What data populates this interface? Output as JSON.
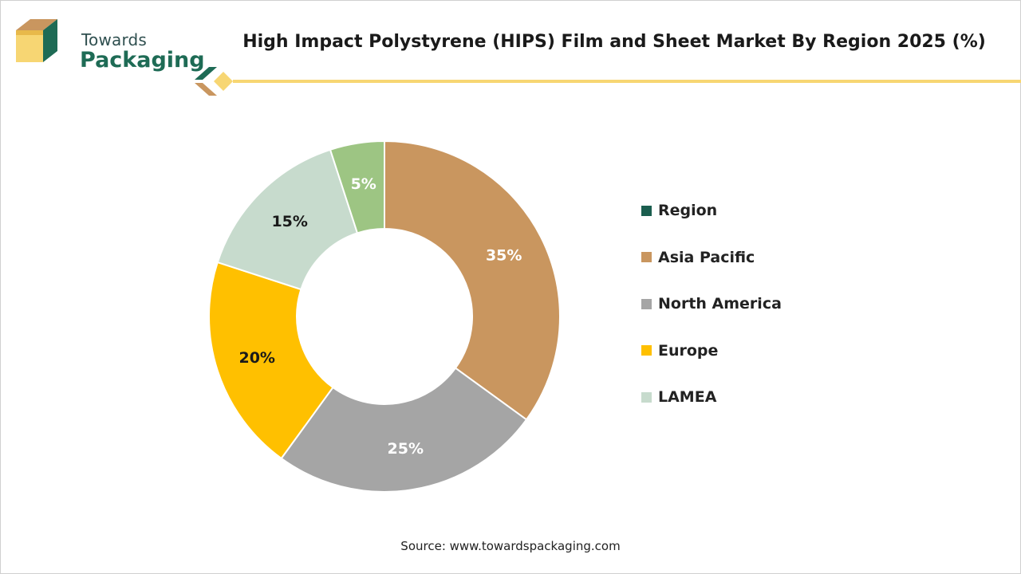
{
  "brand": {
    "line1": "Towards",
    "line2": "Packaging"
  },
  "title": "High Impact Polystyrene (HIPS) Film and Sheet Market By Region 2025 (%)",
  "source": "Source: www.towardspackaging.com",
  "colors": {
    "brand_green": "#1e6b55",
    "brand_tan": "#c9965f",
    "brand_yellow": "#f7d673"
  },
  "legend": [
    {
      "label": "Region",
      "color": "#1b5e4f"
    },
    {
      "label": "Asia Pacific",
      "color": "#c9965f"
    },
    {
      "label": "North America",
      "color": "#a5a5a5"
    },
    {
      "label": "Europe",
      "color": "#ffc000"
    },
    {
      "label": "LAMEA",
      "color": "#c7dbcd"
    }
  ],
  "chart_data": {
    "type": "pie",
    "donut": true,
    "title": "High Impact Polystyrene (HIPS) Film and Sheet Market By Region 2025 (%)",
    "categories": [
      "Asia Pacific",
      "North America",
      "Europe",
      "LAMEA",
      ""
    ],
    "values": [
      35,
      25,
      20,
      15,
      5
    ],
    "labels": [
      "35%",
      "25%",
      "20%",
      "15%",
      "5%"
    ],
    "colors": [
      "#c9965f",
      "#a5a5a5",
      "#ffc000",
      "#c7dbcd",
      "#9dc583"
    ],
    "label_colors": [
      "#ffffff",
      "#ffffff",
      "#1a1a1a",
      "#1a1a1a",
      "#ffffff"
    ],
    "legend_position": "right"
  }
}
